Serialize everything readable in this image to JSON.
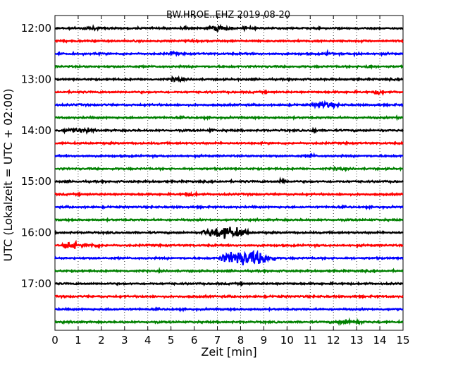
{
  "chart_data": {
    "type": "line",
    "title": "BW.HROE..EHZ 2019-08-20",
    "xlabel": "Zeit  [min]",
    "ylabel": "UTC (Lokalzeit = UTC + 02:00)",
    "xlim": [
      0,
      15
    ],
    "x_ticks": [
      0,
      1,
      2,
      3,
      4,
      5,
      6,
      7,
      8,
      9,
      10,
      11,
      12,
      13,
      14,
      15
    ],
    "x_tick_labels": [
      "0",
      "1",
      "2",
      "3",
      "4",
      "5",
      "6",
      "7",
      "8",
      "9",
      "10",
      "11",
      "12",
      "13",
      "14",
      "15"
    ],
    "y_tick_labels": [
      "12:00",
      "13:00",
      "14:00",
      "15:00",
      "16:00",
      "17:00"
    ],
    "grid": "vertical dotted at each minute",
    "trace_colors": [
      "#000000",
      "#ff0000",
      "#0000ff",
      "#008000"
    ],
    "trace_row_labels": [
      "12:00",
      "12:15",
      "12:30",
      "12:45",
      "13:00",
      "13:15",
      "13:30",
      "13:45",
      "14:00",
      "14:15",
      "14:30",
      "14:45",
      "15:00",
      "15:15",
      "15:30",
      "15:45",
      "16:00",
      "16:15",
      "16:30",
      "16:45",
      "17:00",
      "17:15",
      "17:30",
      "17:45"
    ],
    "series_note": "24 helicorder traces of 15 minutes each; events listed per trace as [start_min, end_min, relative_amplitude]",
    "traces": [
      {
        "start": "12:00",
        "events": [
          [
            1.0,
            2.0,
            1.4
          ],
          [
            5.3,
            5.8,
            1.3
          ],
          [
            6.6,
            7.6,
            2.6
          ],
          [
            8.0,
            8.5,
            1.4
          ]
        ]
      },
      {
        "start": "12:15",
        "events": []
      },
      {
        "start": "12:30",
        "events": [
          [
            4.8,
            5.4,
            1.4
          ],
          [
            11.5,
            12.1,
            1.4
          ],
          [
            12.8,
            13.3,
            1.4
          ]
        ]
      },
      {
        "start": "12:45",
        "events": [
          [
            13.2,
            13.8,
            2.0
          ]
        ]
      },
      {
        "start": "13:00",
        "events": [
          [
            4.9,
            5.6,
            2.2
          ]
        ]
      },
      {
        "start": "13:15",
        "events": [
          [
            13.7,
            14.2,
            2.2
          ]
        ]
      },
      {
        "start": "13:30",
        "events": [
          [
            11.0,
            12.3,
            2.4
          ]
        ]
      },
      {
        "start": "13:45",
        "events": [
          [
            14.6,
            15.0,
            1.4
          ]
        ]
      },
      {
        "start": "14:00",
        "events": [
          [
            0.1,
            1.8,
            1.8
          ],
          [
            6.6,
            6.9,
            1.6
          ],
          [
            11.0,
            11.3,
            2.2
          ]
        ]
      },
      {
        "start": "14:15",
        "events": []
      },
      {
        "start": "14:30",
        "events": [
          [
            10.8,
            11.3,
            1.4
          ]
        ]
      },
      {
        "start": "14:45",
        "events": [
          [
            11.8,
            12.6,
            1.4
          ]
        ]
      },
      {
        "start": "15:00",
        "events": [
          [
            9.6,
            10.0,
            2.2
          ]
        ]
      },
      {
        "start": "15:15",
        "events": [
          [
            5.4,
            6.2,
            1.6
          ]
        ]
      },
      {
        "start": "15:30",
        "events": []
      },
      {
        "start": "15:45",
        "events": []
      },
      {
        "start": "16:00",
        "events": [
          [
            6.3,
            8.4,
            4.8
          ]
        ]
      },
      {
        "start": "16:15",
        "events": [
          [
            0.3,
            1.0,
            3.6
          ],
          [
            1.0,
            2.2,
            1.5
          ]
        ]
      },
      {
        "start": "16:30",
        "events": [
          [
            7.0,
            9.5,
            6.2
          ]
        ]
      },
      {
        "start": "16:45",
        "events": []
      },
      {
        "start": "17:00",
        "events": []
      },
      {
        "start": "17:15",
        "events": []
      },
      {
        "start": "17:30",
        "events": [
          [
            2.3,
            2.5,
            1.3
          ]
        ]
      },
      {
        "start": "17:45",
        "events": [
          [
            12.0,
            13.4,
            2.2
          ]
        ]
      }
    ]
  }
}
